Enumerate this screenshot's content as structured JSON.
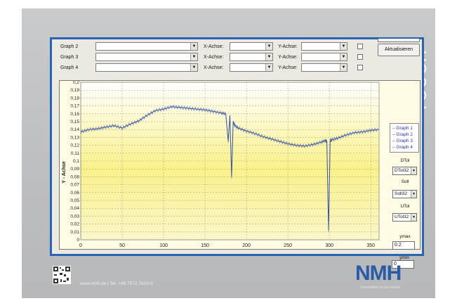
{
  "side_text": "TOUCH",
  "rows": [
    {
      "graph_label": "Graph 2",
      "x_label": "X-Achse:",
      "y_label": "Y-Achse:"
    },
    {
      "graph_label": "Graph 3",
      "x_label": "X-Achse:",
      "y_label": "Y-Achse:"
    },
    {
      "graph_label": "Graph 4",
      "x_label": "X-Achse:",
      "y_label": "Y-Achse:"
    }
  ],
  "refresh_button": "Aktualisieren",
  "legend": [
    "Graph 1",
    "Graph 2",
    "Graph 3",
    "Graph 4"
  ],
  "side_panel": {
    "dtol_label": "DTol",
    "dtol_value": "DTol32",
    "soll_label": "Soll",
    "soll_value": "Soll32",
    "utol_label": "UTol",
    "utol_value": "UTol32",
    "ymax_label": "ymax",
    "ymax_value": "0.2",
    "ymin_label": "ymin",
    "ymin_value": "0"
  },
  "plot": {
    "ylabel": "Y - Achse",
    "yticks": [
      "0,2",
      "0,19",
      "0,18",
      "0,17",
      "0,16",
      "0,15",
      "0,14",
      "0,13",
      "0,12",
      "0,11",
      "0,1",
      "0,09",
      "0,08",
      "0,07",
      "0,06",
      "0,05",
      "0,04",
      "0,03",
      "0,02",
      "0,01",
      "0"
    ],
    "xticks": [
      "0",
      "50",
      "100",
      "150",
      "200",
      "250",
      "300",
      "350"
    ]
  },
  "chart_data": {
    "type": "line",
    "xlim": [
      0,
      360
    ],
    "ylim": [
      0,
      0.2
    ],
    "grid": true,
    "series": [
      {
        "name": "Graph 1",
        "color": "#3a56a8",
        "x": [
          0,
          10,
          20,
          30,
          40,
          50,
          60,
          70,
          80,
          90,
          100,
          110,
          120,
          130,
          140,
          150,
          160,
          170,
          175,
          178,
          180,
          182,
          184,
          186,
          190,
          200,
          210,
          220,
          230,
          240,
          250,
          260,
          270,
          280,
          290,
          295,
          297,
          299,
          301,
          303,
          310,
          320,
          330,
          340,
          350,
          360
        ],
        "y": [
          0.137,
          0.14,
          0.141,
          0.143,
          0.145,
          0.142,
          0.147,
          0.151,
          0.158,
          0.164,
          0.166,
          0.169,
          0.168,
          0.167,
          0.166,
          0.165,
          0.163,
          0.161,
          0.16,
          0.125,
          0.158,
          0.08,
          0.15,
          0.145,
          0.142,
          0.138,
          0.135,
          0.131,
          0.128,
          0.125,
          0.122,
          0.12,
          0.119,
          0.121,
          0.124,
          0.126,
          0.125,
          0.012,
          0.126,
          0.127,
          0.129,
          0.133,
          0.136,
          0.137,
          0.139,
          0.14
        ]
      }
    ]
  },
  "footer": {
    "contact": "www.nmh.de | Tel. +49 7572 7619-0",
    "logo": "NMH",
    "tagline": "Innovation is our world"
  }
}
